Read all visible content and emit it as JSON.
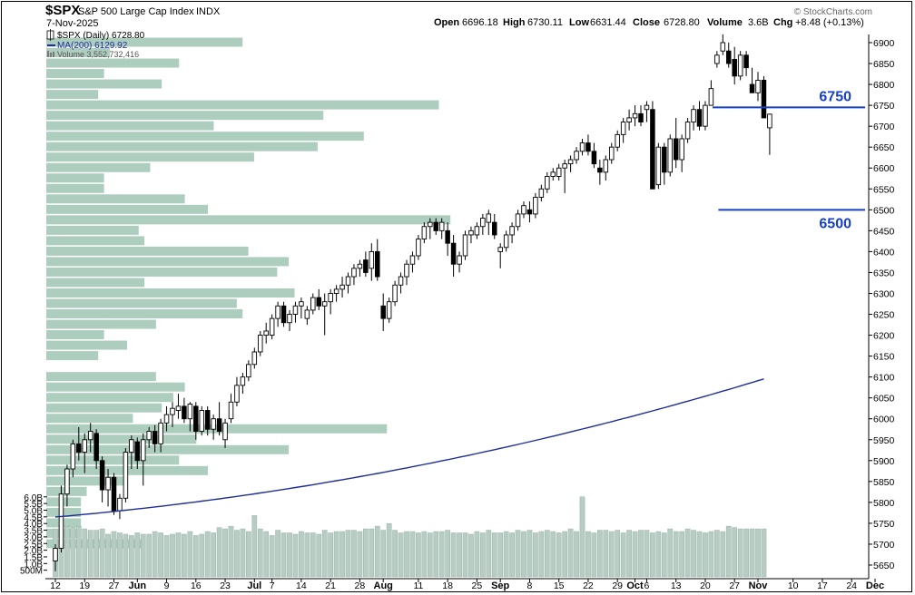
{
  "header": {
    "symbol": "$SPX",
    "name": "S&P 500 Large Cap Index",
    "exchange": "INDX",
    "date": "7-Nov-2025",
    "copyright": "© StockCharts.com",
    "open_label": "Open",
    "open": "6696.18",
    "high_label": "High",
    "high": "6730.11",
    "low_label": "Low",
    "low": "6631.44",
    "close_label": "Close",
    "close": "6728.80",
    "volume_label": "Volume",
    "volume": "3.6B",
    "chg_label": "Chg",
    "chg": "+8.48 (+0.13%)"
  },
  "legend": {
    "price": "$SPX (Daily) 6728.80",
    "ma": "MA(200) 6129.92",
    "volume": "Volume 3,552,732,416"
  },
  "annotations": [
    {
      "label": "6750",
      "value": 6745,
      "from_bar": 111,
      "to_bar": "end"
    },
    {
      "label": "6500",
      "value": 6500,
      "from_bar": 112,
      "to_bar": "end"
    }
  ],
  "colors": {
    "volume_bar": "#b7cdc4",
    "volume_by_price": "#9fc4b3",
    "ma_line": "#1f2f9a",
    "annotation": "#1540c8",
    "candle_up": "#ffffff",
    "candle_down": "#000000"
  },
  "chart_data": {
    "type": "candlestick",
    "title": "$SPX S&P 500 Large Cap Index INDX",
    "period": "Daily",
    "y_axis": {
      "min": 5630,
      "max": 6930,
      "ticks": [
        5650,
        5700,
        5750,
        5800,
        5850,
        5900,
        5950,
        6000,
        6050,
        6100,
        6150,
        6200,
        6250,
        6300,
        6350,
        6400,
        6450,
        6500,
        6550,
        6600,
        6650,
        6700,
        6750,
        6800,
        6850,
        6900
      ],
      "side": "right"
    },
    "volume_axis": {
      "ticks": [
        "500M",
        "1.0B",
        "1.5B",
        "2.0B",
        "2.5B",
        "3.0B",
        "3.5B",
        "4.0B",
        "4.5B",
        "5.0B",
        "5.5B",
        "6.0B"
      ],
      "tick_values": [
        0.5,
        1.0,
        1.5,
        2.0,
        2.5,
        3.0,
        3.5,
        4.0,
        4.5,
        5.0,
        5.5,
        6.0
      ],
      "side": "left"
    },
    "x_ticks": [
      {
        "label": "12",
        "bar": 0
      },
      {
        "label": "19",
        "bar": 5
      },
      {
        "label": "27",
        "bar": 10
      },
      {
        "label": "Jun",
        "bar": 14
      },
      {
        "label": "9",
        "bar": 19
      },
      {
        "label": "16",
        "bar": 24
      },
      {
        "label": "23",
        "bar": 29
      },
      {
        "label": "Jul",
        "bar": 34
      },
      {
        "label": "7",
        "bar": 37
      },
      {
        "label": "14",
        "bar": 42
      },
      {
        "label": "21",
        "bar": 47
      },
      {
        "label": "28",
        "bar": 52
      },
      {
        "label": "Aug",
        "bar": 56
      },
      {
        "label": "11",
        "bar": 62
      },
      {
        "label": "18",
        "bar": 67
      },
      {
        "label": "25",
        "bar": 72
      },
      {
        "label": "Sep",
        "bar": 76
      },
      {
        "label": "8",
        "bar": 81
      },
      {
        "label": "15",
        "bar": 86
      },
      {
        "label": "22",
        "bar": 91
      },
      {
        "label": "29",
        "bar": 96
      },
      {
        "label": "Oct",
        "bar": 99
      },
      {
        "label": "6",
        "bar": 101
      },
      {
        "label": "13",
        "bar": 106
      },
      {
        "label": "20",
        "bar": 111
      },
      {
        "label": "27",
        "bar": 116
      },
      {
        "label": "Nov",
        "bar": 120
      },
      {
        "label": "10",
        "bar": 126
      },
      {
        "label": "17",
        "bar": 131
      },
      {
        "label": "24",
        "bar": 136
      },
      {
        "label": "Dec",
        "bar": 140
      }
    ],
    "candles": [
      [
        5660,
        5700,
        5635,
        5690
      ],
      [
        5690,
        5840,
        5680,
        5820
      ],
      [
        5820,
        5890,
        5790,
        5880
      ],
      [
        5880,
        5950,
        5860,
        5940
      ],
      [
        5940,
        5980,
        5900,
        5920
      ],
      [
        5920,
        5965,
        5870,
        5950
      ],
      [
        5950,
        5990,
        5920,
        5970
      ],
      [
        5965,
        5975,
        5880,
        5900
      ],
      [
        5900,
        5910,
        5800,
        5830
      ],
      [
        5830,
        5880,
        5790,
        5860
      ],
      [
        5860,
        5870,
        5770,
        5780
      ],
      [
        5780,
        5820,
        5760,
        5810
      ],
      [
        5810,
        5930,
        5800,
        5920
      ],
      [
        5920,
        5960,
        5880,
        5950
      ],
      [
        5945,
        5955,
        5880,
        5900
      ],
      [
        5900,
        5965,
        5840,
        5950
      ],
      [
        5950,
        5980,
        5930,
        5970
      ],
      [
        5970,
        5985,
        5920,
        5940
      ],
      [
        5940,
        6000,
        5920,
        5990
      ],
      [
        5990,
        6030,
        5970,
        6010
      ],
      [
        6010,
        6040,
        5980,
        6025
      ],
      [
        6020,
        6060,
        6000,
        6030
      ],
      [
        6030,
        6050,
        5990,
        6000
      ],
      [
        6000,
        6040,
        5970,
        6035
      ],
      [
        6030,
        6040,
        5950,
        5970
      ],
      [
        5970,
        6030,
        5960,
        6020
      ],
      [
        6020,
        6030,
        5960,
        5975
      ],
      [
        5975,
        6010,
        5950,
        6000
      ],
      [
        6000,
        6040,
        5960,
        5970
      ],
      [
        5950,
        6000,
        5930,
        5990
      ],
      [
        6000,
        6060,
        5990,
        6040
      ],
      [
        6040,
        6100,
        6030,
        6080
      ],
      [
        6080,
        6110,
        6060,
        6100
      ],
      [
        6100,
        6140,
        6090,
        6130
      ],
      [
        6130,
        6170,
        6120,
        6160
      ],
      [
        6160,
        6210,
        6150,
        6200
      ],
      [
        6200,
        6230,
        6180,
        6210
      ],
      [
        6200,
        6250,
        6190,
        6240
      ],
      [
        6240,
        6280,
        6220,
        6270
      ],
      [
        6270,
        6280,
        6220,
        6230
      ],
      [
        6230,
        6260,
        6210,
        6250
      ],
      [
        6250,
        6280,
        6230,
        6270
      ],
      [
        6270,
        6290,
        6240,
        6280
      ],
      [
        6240,
        6270,
        6225,
        6260
      ],
      [
        6260,
        6300,
        6250,
        6290
      ],
      [
        6290,
        6310,
        6260,
        6270
      ],
      [
        6270,
        6300,
        6200,
        6280
      ],
      [
        6280,
        6310,
        6250,
        6300
      ],
      [
        6300,
        6320,
        6280,
        6310
      ],
      [
        6310,
        6340,
        6290,
        6320
      ],
      [
        6320,
        6350,
        6300,
        6340
      ],
      [
        6340,
        6370,
        6320,
        6360
      ],
      [
        6360,
        6380,
        6340,
        6370
      ],
      [
        6380,
        6400,
        6340,
        6350
      ],
      [
        6360,
        6420,
        6330,
        6400
      ],
      [
        6400,
        6430,
        6330,
        6340
      ],
      [
        6270,
        6300,
        6210,
        6240
      ],
      [
        6240,
        6290,
        6230,
        6280
      ],
      [
        6280,
        6330,
        6270,
        6320
      ],
      [
        6320,
        6350,
        6300,
        6340
      ],
      [
        6340,
        6380,
        6320,
        6370
      ],
      [
        6370,
        6400,
        6350,
        6390
      ],
      [
        6390,
        6440,
        6380,
        6430
      ],
      [
        6430,
        6470,
        6420,
        6460
      ],
      [
        6460,
        6480,
        6430,
        6470
      ],
      [
        6470,
        6480,
        6440,
        6450
      ],
      [
        6450,
        6480,
        6430,
        6470
      ],
      [
        6450,
        6470,
        6390,
        6420
      ],
      [
        6420,
        6440,
        6340,
        6370
      ],
      [
        6370,
        6400,
        6350,
        6390
      ],
      [
        6390,
        6450,
        6380,
        6440
      ],
      [
        6440,
        6460,
        6420,
        6450
      ],
      [
        6440,
        6470,
        6430,
        6460
      ],
      [
        6460,
        6490,
        6440,
        6480
      ],
      [
        6470,
        6500,
        6440,
        6490
      ],
      [
        6470,
        6490,
        6430,
        6440
      ],
      [
        6400,
        6420,
        6360,
        6410
      ],
      [
        6410,
        6450,
        6400,
        6440
      ],
      [
        6440,
        6470,
        6420,
        6460
      ],
      [
        6460,
        6500,
        6450,
        6490
      ],
      [
        6490,
        6520,
        6480,
        6510
      ],
      [
        6500,
        6520,
        6470,
        6490
      ],
      [
        6490,
        6540,
        6480,
        6530
      ],
      [
        6530,
        6560,
        6520,
        6550
      ],
      [
        6550,
        6590,
        6540,
        6580
      ],
      [
        6580,
        6600,
        6570,
        6590
      ],
      [
        6580,
        6610,
        6570,
        6600
      ],
      [
        6600,
        6620,
        6540,
        6610
      ],
      [
        6610,
        6630,
        6590,
        6620
      ],
      [
        6620,
        6650,
        6610,
        6640
      ],
      [
        6640,
        6670,
        6630,
        6660
      ],
      [
        6660,
        6680,
        6630,
        6640
      ],
      [
        6640,
        6660,
        6600,
        6610
      ],
      [
        6600,
        6620,
        6560,
        6590
      ],
      [
        6590,
        6630,
        6570,
        6620
      ],
      [
        6620,
        6660,
        6610,
        6650
      ],
      [
        6650,
        6690,
        6640,
        6680
      ],
      [
        6680,
        6720,
        6660,
        6710
      ],
      [
        6710,
        6740,
        6690,
        6720
      ],
      [
        6720,
        6750,
        6700,
        6730
      ],
      [
        6730,
        6750,
        6700,
        6710
      ],
      [
        6740,
        6760,
        6710,
        6750
      ],
      [
        6740,
        6760,
        6550,
        6550
      ],
      [
        6560,
        6660,
        6550,
        6650
      ],
      [
        6650,
        6660,
        6560,
        6590
      ],
      [
        6590,
        6680,
        6580,
        6670
      ],
      [
        6670,
        6720,
        6600,
        6620
      ],
      [
        6620,
        6680,
        6590,
        6670
      ],
      [
        6670,
        6720,
        6660,
        6710
      ],
      [
        6710,
        6750,
        6690,
        6740
      ],
      [
        6740,
        6760,
        6690,
        6700
      ],
      [
        6700,
        6760,
        6690,
        6750
      ],
      [
        6750,
        6810,
        6760,
        6790
      ],
      [
        6850,
        6880,
        6840,
        6870
      ],
      [
        6880,
        6920,
        6870,
        6900
      ],
      [
        6880,
        6900,
        6840,
        6850
      ],
      [
        6860,
        6890,
        6800,
        6820
      ],
      [
        6820,
        6880,
        6810,
        6870
      ],
      [
        6870,
        6880,
        6820,
        6840
      ],
      [
        6800,
        6840,
        6780,
        6780
      ],
      [
        6780,
        6830,
        6760,
        6810
      ],
      [
        6810,
        6820,
        6720,
        6720
      ],
      [
        6696.18,
        6730.11,
        6631.44,
        6728.8
      ]
    ],
    "volume_billions": [
      3.6,
      3.9,
      3.8,
      3.7,
      3.8,
      3.6,
      3.5,
      3.5,
      3.6,
      3.2,
      3.4,
      3.3,
      3.2,
      3.1,
      3.3,
      3.2,
      3.2,
      3.4,
      3.3,
      3.1,
      3.2,
      3.3,
      3.2,
      3.4,
      3.1,
      3.2,
      3.4,
      3.3,
      3.7,
      3.6,
      3.8,
      3.5,
      3.6,
      3.4,
      4.6,
      3.6,
      3.4,
      3.1,
      3.5,
      3.3,
      3.3,
      3.2,
      3.4,
      3.3,
      3.3,
      3.2,
      3.5,
      3.3,
      3.4,
      3.4,
      3.5,
      3.5,
      3.4,
      3.6,
      3.6,
      3.8,
      3.5,
      4.0,
      3.5,
      3.3,
      3.4,
      3.4,
      3.3,
      3.4,
      3.3,
      3.4,
      3.4,
      3.5,
      3.3,
      3.3,
      3.3,
      3.2,
      3.4,
      3.3,
      3.5,
      3.3,
      3.3,
      3.4,
      3.3,
      3.5,
      3.4,
      3.5,
      3.3,
      3.4,
      3.5,
      3.4,
      3.3,
      3.4,
      3.6,
      3.4,
      6.0,
      3.4,
      3.3,
      3.5,
      3.5,
      3.4,
      3.5,
      3.3,
      3.5,
      3.4,
      3.5,
      3.5,
      3.3,
      3.4,
      3.3,
      3.6,
      3.4,
      3.4,
      3.6,
      3.5,
      3.4,
      3.3,
      3.4,
      3.5,
      3.4,
      3.8,
      3.7,
      3.6,
      3.6,
      3.6,
      3.6,
      3.6
    ],
    "ma200": {
      "series": "MA(200)",
      "start_bar": 0,
      "start": 5765,
      "end": 6128
    },
    "volume_by_price": [
      [
        6900,
        3.4
      ],
      [
        6875,
        1.1
      ],
      [
        6850,
        2.3
      ],
      [
        6825,
        1.0
      ],
      [
        6800,
        2.0
      ],
      [
        6775,
        0.9
      ],
      [
        6750,
        6.8
      ],
      [
        6725,
        4.8
      ],
      [
        6700,
        2.9
      ],
      [
        6675,
        5.5
      ],
      [
        6650,
        4.7
      ],
      [
        6625,
        3.6
      ],
      [
        6600,
        1.8
      ],
      [
        6575,
        1.0
      ],
      [
        6550,
        1.0
      ],
      [
        6525,
        2.4
      ],
      [
        6500,
        2.8
      ],
      [
        6475,
        7.0
      ],
      [
        6450,
        1.6
      ],
      [
        6425,
        1.7
      ],
      [
        6400,
        3.5
      ],
      [
        6375,
        4.2
      ],
      [
        6350,
        4.0
      ],
      [
        6325,
        1.7
      ],
      [
        6300,
        4.3
      ],
      [
        6275,
        3.3
      ],
      [
        6250,
        3.4
      ],
      [
        6225,
        1.9
      ],
      [
        6200,
        1.0
      ],
      [
        6175,
        1.4
      ],
      [
        6150,
        0.9
      ],
      [
        6125,
        0.0
      ],
      [
        6100,
        1.9
      ],
      [
        6075,
        2.4
      ],
      [
        6050,
        2.2
      ],
      [
        6025,
        2.0
      ],
      [
        6000,
        1.5
      ],
      [
        5975,
        5.9
      ],
      [
        5950,
        2.6
      ],
      [
        5925,
        4.2
      ],
      [
        5900,
        2.3
      ],
      [
        5875,
        2.8
      ],
      [
        5850,
        1.4
      ],
      [
        5825,
        0.7
      ],
      [
        5800,
        0.6
      ],
      [
        5775,
        0.6
      ],
      [
        5750,
        0.6
      ],
      [
        5725,
        0.6
      ],
      [
        5700,
        1.7
      ]
    ]
  }
}
